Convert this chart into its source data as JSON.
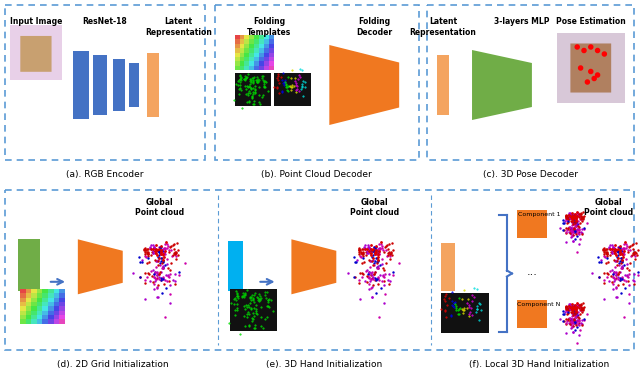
{
  "bg_color": "#ffffff",
  "top_box_color": "#b0c4d8",
  "top_box_dash": "#5b9bd5",
  "bottom_box_dash": "#5b9bd5",
  "blue_rect": "#4472C4",
  "peach_rect": "#F4A460",
  "orange_shape": "#F07820",
  "green_shape": "#70AD47",
  "cyan_rect": "#00B0F0",
  "captions": [
    "(a). RGB Encoder",
    "(b). Point Cloud Decoder",
    "(c). 3D Pose Decoder",
    "(d). 2D Grid Initialization",
    "(e). 3D Hand Initialization",
    "(f). Local 3D Hand Initialization"
  ],
  "top_labels_a": [
    "Input Image",
    "ResNet-18",
    "Latent\nRepresentation"
  ],
  "top_labels_b": [
    "Folding\nTemplates",
    "Folding\nDecoder"
  ],
  "top_labels_c": [
    "Latent\nRepresentation",
    "3-layers MLP",
    "Pose Estimation"
  ],
  "component_labels": [
    "Component 1",
    "...",
    "Component N"
  ],
  "global_pc_label": "Global\nPoint cloud"
}
